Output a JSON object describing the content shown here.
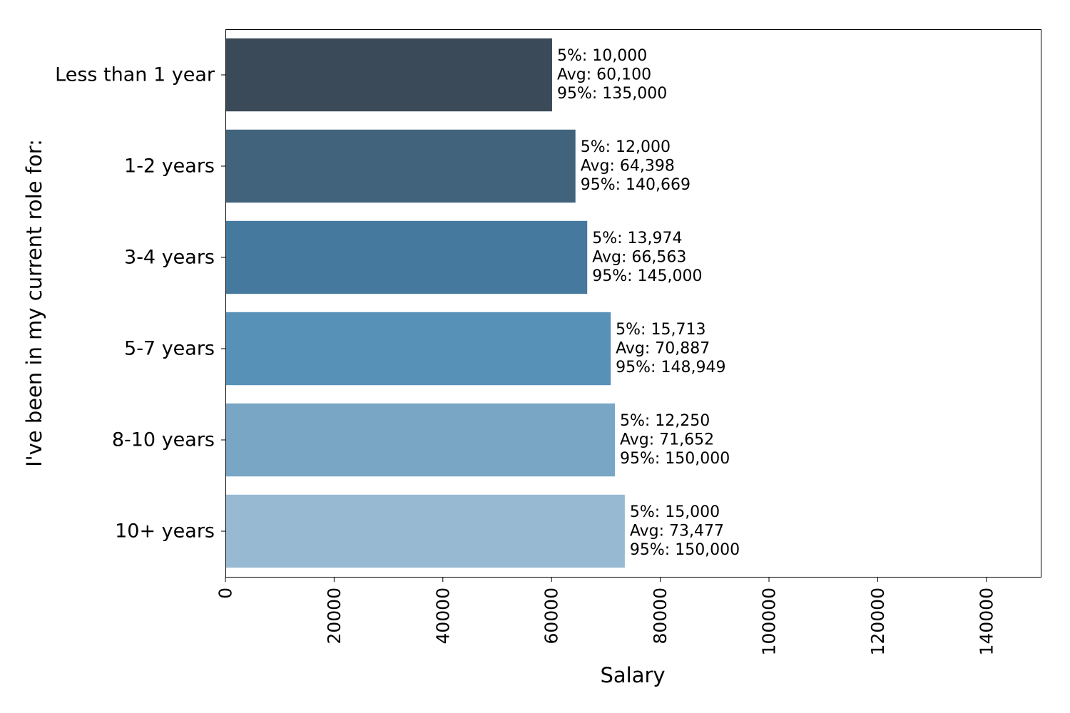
{
  "chart_data": {
    "type": "bar",
    "orientation": "horizontal",
    "title": "",
    "xlabel": "Salary",
    "ylabel": "I've been in my current role for:",
    "xlim": [
      0,
      150000
    ],
    "x_ticks": [
      0,
      20000,
      40000,
      60000,
      80000,
      100000,
      120000,
      140000
    ],
    "x_tick_labels": [
      "0",
      "20000",
      "40000",
      "60000",
      "80000",
      "100000",
      "120000",
      "140000"
    ],
    "grid": false,
    "legend": "none",
    "categories": [
      "Less than 1 year",
      "1-2 years",
      "3-4 years",
      "5-7 years",
      "8-10 years",
      "10+ years"
    ],
    "values": [
      60100,
      64398,
      66563,
      70887,
      71652,
      73477
    ],
    "colors": [
      "#3a4a58",
      "#41637c",
      "#46799e",
      "#5891b7",
      "#78a6c4",
      "#97b9d2"
    ],
    "annotations": [
      [
        "5%: 10,000",
        "Avg: 60,100",
        "95%: 135,000"
      ],
      [
        "5%: 12,000",
        "Avg: 64,398",
        "95%: 140,669"
      ],
      [
        "5%: 13,974",
        "Avg: 66,563",
        "95%: 145,000"
      ],
      [
        "5%: 15,713",
        "Avg: 70,887",
        "95%: 148,949"
      ],
      [
        "5%: 12,250",
        "Avg: 71,652",
        "95%: 150,000"
      ],
      [
        "5%: 15,000",
        "Avg: 73,477",
        "95%: 150,000"
      ]
    ]
  }
}
